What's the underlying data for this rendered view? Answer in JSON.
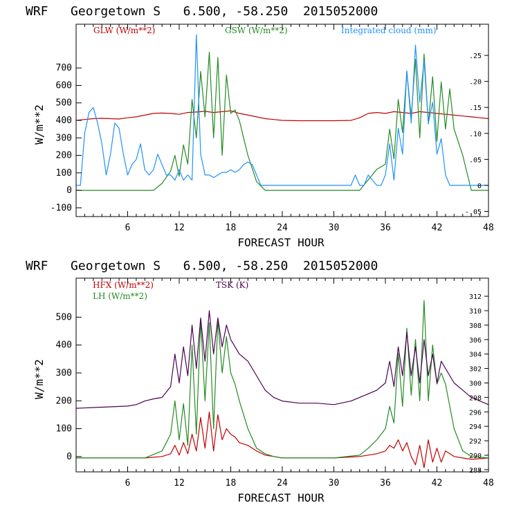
{
  "colors": {
    "red": "#c00000",
    "green": "#228b22",
    "blue": "#1e90ff",
    "purple": "#4b0050",
    "axis": "#000000"
  },
  "chart_data": [
    {
      "type": "line",
      "title": "WRF   Georgetown S   6.500, -58.250  2015052000",
      "xlabel": "FORECAST HOUR",
      "ylabel": "W/m**2",
      "xlim": [
        0,
        48
      ],
      "ylim": [
        -150,
        950
      ],
      "y2lim": [
        -0.06,
        0.31
      ],
      "xticks": [
        6,
        12,
        18,
        24,
        30,
        36,
        42,
        48
      ],
      "yticks": [
        -100,
        0,
        100,
        200,
        300,
        400,
        500,
        600,
        700
      ],
      "y2ticks": [
        -0.05,
        0,
        0.05,
        0.1,
        0.15,
        0.2,
        0.25
      ],
      "y2ticklabels": [
        "-.05",
        "0",
        ".05",
        ".10",
        ".15",
        ".20",
        ".25"
      ],
      "legend": [
        "GLW (W/m**2)",
        "GSW (W/m**2)",
        "Integrated cloud (mm)"
      ],
      "series": [
        {
          "name": "GLW (W/m**2)",
          "axis": "left",
          "color": "red",
          "x": [
            0,
            1,
            2,
            3,
            4,
            5,
            6,
            7,
            8,
            9,
            10,
            11,
            12,
            13,
            14,
            15,
            16,
            17,
            18,
            19,
            20,
            21,
            22,
            23,
            24,
            26,
            28,
            30,
            32,
            33,
            34,
            35,
            36,
            37,
            38,
            39,
            40,
            41,
            42,
            43,
            44,
            45,
            46,
            47,
            48
          ],
          "y": [
            400,
            405,
            410,
            412,
            410,
            408,
            415,
            420,
            430,
            440,
            442,
            440,
            435,
            445,
            448,
            452,
            445,
            450,
            455,
            440,
            430,
            420,
            410,
            405,
            400,
            398,
            398,
            398,
            400,
            415,
            440,
            445,
            440,
            450,
            445,
            440,
            450,
            445,
            440,
            435,
            430,
            425,
            420,
            415,
            410
          ]
        },
        {
          "name": "GSW (W/m**2)",
          "axis": "left",
          "color": "green",
          "x": [
            0,
            9,
            10,
            11,
            11.5,
            12,
            12.5,
            13,
            13.5,
            14,
            14.5,
            15,
            15.5,
            16,
            16.5,
            17,
            17.5,
            18,
            18.5,
            19,
            19.5,
            20,
            21,
            22,
            23,
            24,
            30,
            33,
            34,
            35,
            36,
            36.5,
            37,
            37.5,
            38,
            38.5,
            39,
            39.5,
            40,
            40.5,
            41,
            41.5,
            42,
            42.5,
            43,
            43.5,
            44,
            45,
            46,
            48
          ],
          "y": [
            0,
            0,
            40,
            110,
            200,
            80,
            260,
            150,
            520,
            300,
            680,
            420,
            790,
            300,
            760,
            200,
            660,
            440,
            460,
            400,
            300,
            200,
            50,
            0,
            0,
            0,
            0,
            0,
            60,
            120,
            150,
            350,
            180,
            520,
            330,
            680,
            420,
            750,
            300,
            780,
            380,
            650,
            280,
            620,
            350,
            580,
            350,
            200,
            0,
            0
          ]
        },
        {
          "name": "Integrated cloud (mm)",
          "axis": "right",
          "color": "blue",
          "x": [
            0,
            0.5,
            1,
            1.5,
            2,
            2.5,
            3,
            3.5,
            4,
            4.5,
            5,
            5.5,
            6,
            6.5,
            7,
            7.5,
            8,
            8.5,
            9,
            9.5,
            10,
            10.5,
            11,
            11.5,
            12,
            12.5,
            13,
            13.5,
            14,
            14.5,
            15,
            15.5,
            16,
            16.5,
            17,
            17.5,
            18,
            18.5,
            19,
            19.5,
            20,
            20.5,
            21,
            21.5,
            22,
            23,
            24,
            30,
            32,
            32.5,
            33,
            33.5,
            34,
            34.5,
            35,
            35.5,
            36,
            36.5,
            37,
            37.5,
            38,
            38.5,
            39,
            39.5,
            40,
            40.5,
            41,
            41.5,
            42,
            42.5,
            43,
            43.5,
            44,
            45,
            46,
            48
          ],
          "y": [
            0,
            0,
            0.1,
            0.14,
            0.15,
            0.12,
            0.08,
            0.02,
            0.06,
            0.12,
            0.11,
            0.06,
            0.02,
            0.04,
            0.05,
            0.08,
            0.03,
            0.02,
            0.03,
            0.06,
            0.04,
            0.02,
            0.02,
            0.01,
            0.03,
            0.01,
            0.02,
            0.01,
            0.29,
            0.06,
            0.02,
            0.02,
            0.015,
            0.02,
            0.025,
            0.025,
            0.03,
            0.025,
            0.03,
            0.04,
            0.045,
            0.04,
            0.02,
            0,
            0,
            0,
            0,
            0,
            0,
            0.02,
            0,
            0,
            0.02,
            0.01,
            0,
            0,
            0.02,
            0.08,
            0.01,
            0.11,
            0.06,
            0.22,
            0.12,
            0.27,
            0.16,
            0.24,
            0.12,
            0.16,
            0.06,
            0.09,
            0.02,
            0,
            0,
            0,
            0,
            0
          ]
        }
      ]
    },
    {
      "type": "line",
      "title": "WRF   Georgetown S   6.500, -58.250  2015052000",
      "xlabel": "FORECAST HOUR",
      "ylabel": "W/m**2",
      "xlim": [
        0,
        48
      ],
      "ylim": [
        -55,
        640
      ],
      "y2lim": [
        287.7,
        314.5
      ],
      "xticks": [
        6,
        12,
        18,
        24,
        30,
        36,
        42,
        48
      ],
      "yticks": [
        0,
        100,
        200,
        300,
        400,
        500
      ],
      "y2ticks": [
        288,
        290,
        292,
        294,
        296,
        298,
        300,
        302,
        304,
        306,
        308,
        310,
        312
      ],
      "y2ticklabels": [
        "288",
        "290",
        "292",
        "294",
        "296",
        "298",
        "300",
        "302",
        "304",
        "306",
        "308",
        "310",
        "312"
      ],
      "legend": [
        "HFX (W/m**2)",
        "LH (W/m**2)",
        "TSK (K)"
      ],
      "series": [
        {
          "name": "HFX (W/m**2)",
          "axis": "left",
          "color": "red",
          "x": [
            0,
            8,
            10,
            11,
            11.5,
            12,
            12.5,
            13,
            13.5,
            14,
            14.5,
            15,
            15.5,
            16,
            16.5,
            17,
            17.5,
            18,
            18.5,
            19,
            20,
            21,
            22,
            23,
            24,
            30,
            33,
            34,
            35,
            36,
            36.5,
            37,
            37.5,
            38,
            38.5,
            39,
            39.5,
            40,
            40.5,
            41,
            41.5,
            42,
            42.5,
            43,
            44,
            45,
            46,
            48
          ],
          "y": [
            -5,
            -5,
            0,
            10,
            40,
            5,
            50,
            10,
            80,
            20,
            140,
            30,
            160,
            20,
            150,
            60,
            100,
            80,
            70,
            50,
            40,
            20,
            5,
            0,
            -5,
            -5,
            0,
            5,
            10,
            20,
            40,
            30,
            60,
            20,
            50,
            0,
            -30,
            40,
            -40,
            60,
            -20,
            30,
            -20,
            20,
            0,
            -5,
            -10,
            -5
          ]
        },
        {
          "name": "LH (W/m**2)",
          "axis": "left",
          "color": "green",
          "x": [
            0,
            8,
            10,
            11,
            11.5,
            12,
            12.5,
            13,
            13.5,
            14,
            14.5,
            15,
            15.5,
            16,
            16.5,
            17,
            17.5,
            18,
            18.5,
            19,
            20,
            21,
            22,
            23,
            24,
            30,
            33,
            34,
            35,
            36,
            36.5,
            37,
            37.5,
            38,
            38.5,
            39,
            39.5,
            40,
            40.5,
            41,
            41.5,
            42,
            42.5,
            43,
            44,
            45,
            46,
            48
          ],
          "y": [
            -5,
            -5,
            20,
            80,
            200,
            60,
            190,
            40,
            400,
            80,
            490,
            200,
            480,
            100,
            490,
            300,
            430,
            300,
            260,
            200,
            100,
            30,
            10,
            0,
            -5,
            -5,
            5,
            30,
            60,
            100,
            180,
            120,
            370,
            180,
            460,
            220,
            420,
            200,
            560,
            200,
            400,
            260,
            300,
            260,
            100,
            20,
            0,
            -5
          ]
        },
        {
          "name": "TSK (K)",
          "axis": "right",
          "color": "purple",
          "x": [
            0,
            2,
            4,
            6,
            7,
            8,
            9,
            10,
            11,
            11.5,
            12,
            12.5,
            13,
            13.5,
            14,
            14.5,
            15,
            15.5,
            16,
            16.5,
            17,
            17.5,
            18,
            18.5,
            19,
            20,
            21,
            22,
            23,
            24,
            26,
            28,
            30,
            32,
            33,
            34,
            35,
            36,
            36.5,
            37,
            37.5,
            38,
            38.5,
            39,
            39.5,
            40,
            40.5,
            41,
            41.5,
            42,
            42.5,
            43,
            44,
            45,
            46,
            47,
            48
          ],
          "y": [
            296.5,
            296.6,
            296.7,
            296.8,
            297,
            297.5,
            297.8,
            298,
            299.5,
            304,
            300,
            305,
            301,
            308,
            302,
            309,
            303,
            310,
            304,
            309,
            305,
            308,
            306,
            305,
            304,
            303,
            301,
            299,
            298,
            297.5,
            297.2,
            297.2,
            297,
            297.5,
            298,
            298.5,
            299,
            300,
            303,
            299.5,
            305,
            301,
            307,
            301,
            305,
            300,
            306,
            301,
            304,
            300,
            303,
            302,
            300,
            299,
            298,
            297.5,
            297
          ]
        }
      ]
    }
  ]
}
